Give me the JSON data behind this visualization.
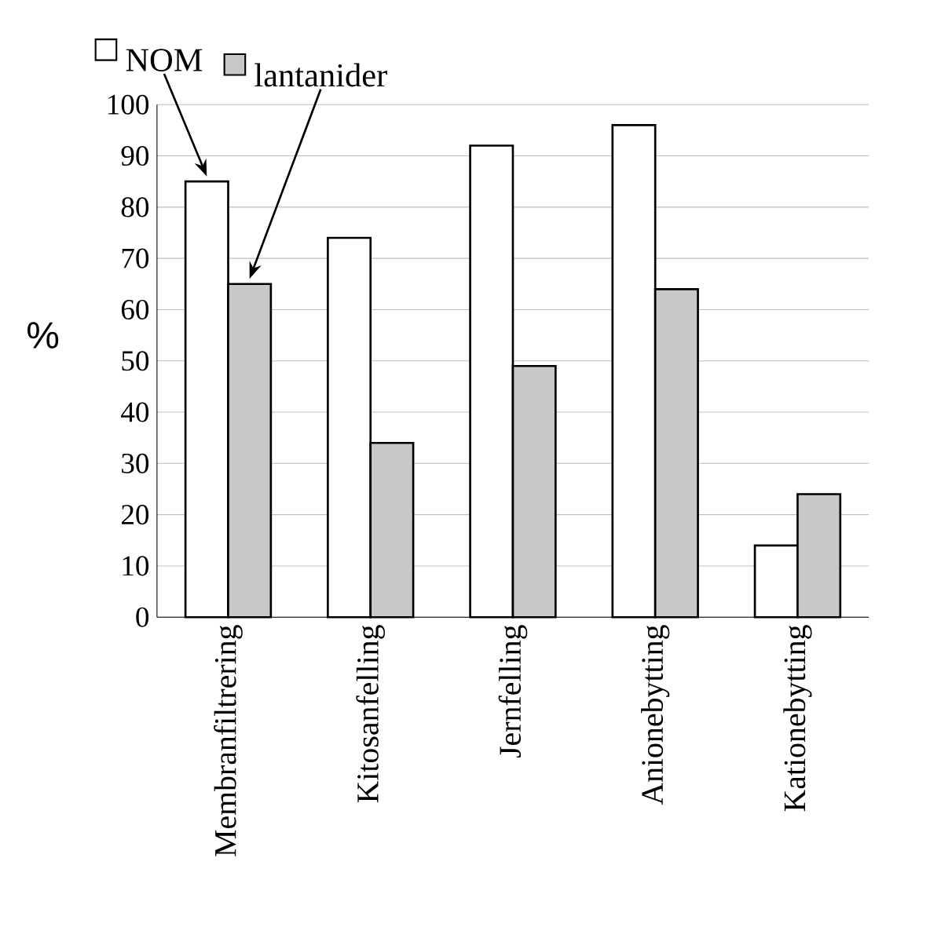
{
  "chart_data": {
    "type": "bar",
    "ylabel": "%",
    "categories": [
      "Membranfiltrering",
      "Kitosanfelling",
      "Jernfelling",
      "Anionebytting",
      "Kationebytting"
    ],
    "series": [
      {
        "name": "NOM",
        "color": "#ffffff",
        "values": [
          85,
          74,
          92,
          96,
          14
        ]
      },
      {
        "name": "lantanider",
        "color": "#c8c8c8",
        "values": [
          65,
          34,
          49,
          64,
          24
        ]
      }
    ],
    "ylim": [
      0,
      100
    ],
    "yticks": [
      0,
      10,
      20,
      30,
      40,
      50,
      60,
      70,
      80,
      90,
      100
    ],
    "grid": "y",
    "legend": "top left"
  }
}
